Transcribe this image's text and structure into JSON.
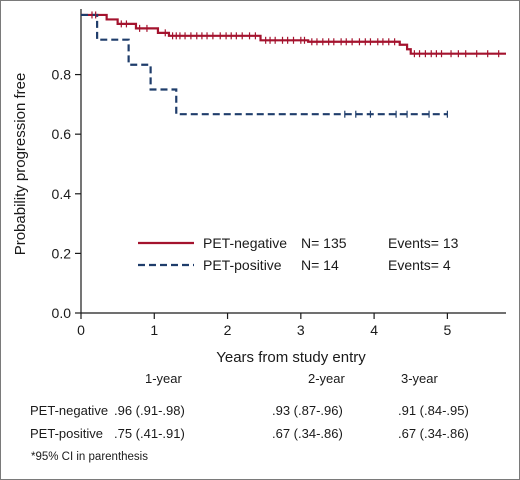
{
  "chart_data": {
    "type": "line",
    "subtype": "kaplan-meier step curves",
    "xlabel": "Years from study entry",
    "ylabel": "Probability progression free",
    "xlim": [
      0,
      5.8
    ],
    "ylim": [
      0,
      1.02
    ],
    "xticks": [
      0,
      1,
      2,
      3,
      4,
      5
    ],
    "yticks": [
      "0.0",
      "0.2",
      "0.4",
      "0.6",
      "0.8"
    ],
    "grid": false,
    "legend_position": "lower-left",
    "series": [
      {
        "name": "PET-negative",
        "n_label": "N= 135",
        "events_label": "Events= 13",
        "color": "#a4132e",
        "line_style": "solid",
        "steps": [
          [
            0,
            1.0
          ],
          [
            0.35,
            0.985
          ],
          [
            0.5,
            0.97
          ],
          [
            0.75,
            0.955
          ],
          [
            1.05,
            0.94
          ],
          [
            1.2,
            0.93
          ],
          [
            2.45,
            0.915
          ],
          [
            3.1,
            0.91
          ],
          [
            4.35,
            0.9
          ],
          [
            4.45,
            0.885
          ],
          [
            4.5,
            0.87
          ],
          [
            5.8,
            0.87
          ]
        ],
        "censor_x": [
          0.15,
          0.2,
          0.55,
          0.62,
          0.8,
          0.9,
          1.15,
          1.25,
          1.3,
          1.35,
          1.42,
          1.5,
          1.58,
          1.65,
          1.72,
          1.8,
          1.9,
          1.98,
          2.05,
          2.12,
          2.2,
          2.3,
          2.38,
          2.52,
          2.58,
          2.65,
          2.75,
          2.82,
          2.9,
          3.0,
          3.05,
          3.15,
          3.22,
          3.3,
          3.38,
          3.45,
          3.55,
          3.62,
          3.7,
          3.8,
          3.88,
          3.95,
          4.05,
          4.12,
          4.2,
          4.28,
          4.55,
          4.62,
          4.7,
          4.78,
          4.85,
          4.92,
          5.05,
          5.15,
          5.25,
          5.4,
          5.55,
          5.7
        ]
      },
      {
        "name": "PET-positive",
        "n_label": "N= 14",
        "events_label": "Events= 4",
        "color": "#1f3d6b",
        "line_style": "dashed",
        "steps": [
          [
            0,
            1.0
          ],
          [
            0.22,
            0.917
          ],
          [
            0.65,
            0.833
          ],
          [
            0.95,
            0.75
          ],
          [
            1.3,
            0.667
          ],
          [
            5.0,
            0.667
          ]
        ],
        "censor_x": [
          3.6,
          3.75,
          3.95,
          4.3,
          4.45,
          4.75,
          5.0
        ]
      }
    ]
  },
  "table": {
    "headers": [
      "1-year",
      "2-year",
      "3-year"
    ],
    "rows": [
      {
        "label": "PET-negative",
        "values": [
          ".96 (.91-.98)",
          ".93 (.87-.96)",
          ".91 (.84-.95)"
        ]
      },
      {
        "label": "PET-positive",
        "values": [
          ".75 (.41-.91)",
          ".67 (.34-.86)",
          ".67 (.34-.86)"
        ]
      }
    ]
  },
  "footnote": "*95% CI in parenthesis"
}
